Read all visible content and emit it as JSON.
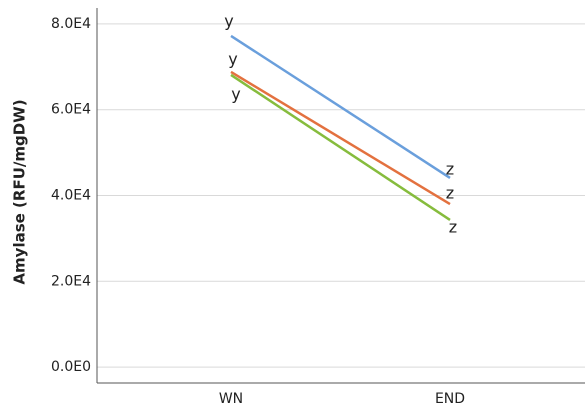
{
  "chart_data": {
    "type": "line",
    "y_label": "Amylase (RFU/mgDW)",
    "categories": [
      "WN",
      "END"
    ],
    "series": [
      {
        "color": "#6a9fdc",
        "values": [
          77200,
          44100
        ],
        "labels": [
          "y",
          "z"
        ]
      },
      {
        "color": "#e3713f",
        "values": [
          68800,
          38000
        ],
        "labels": [
          "y",
          "z"
        ]
      },
      {
        "color": "#86bc3d",
        "values": [
          68100,
          34300
        ],
        "labels": [
          "y",
          "z"
        ]
      }
    ],
    "ylim": [
      -3700,
      83700
    ],
    "yticks": [
      {
        "value": 0,
        "label": "0.0E0"
      },
      {
        "value": 20000,
        "label": "2.0E4"
      },
      {
        "value": 40000,
        "label": "4.0E4"
      },
      {
        "value": 60000,
        "label": "6.0E4"
      },
      {
        "value": 80000,
        "label": "8.0E4"
      }
    ],
    "grid": true
  }
}
